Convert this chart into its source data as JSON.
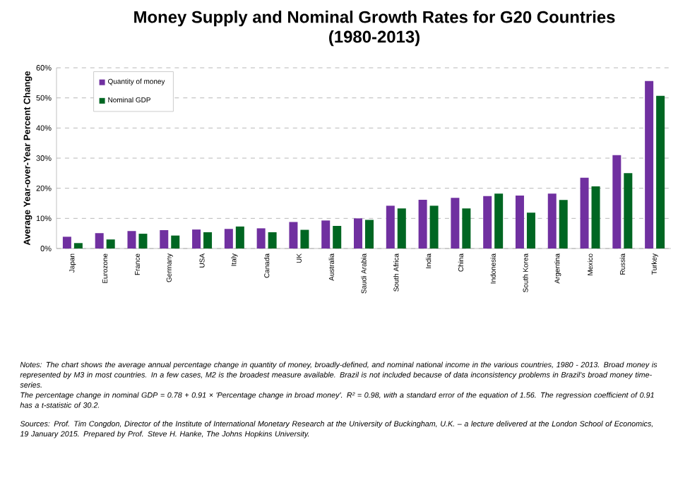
{
  "chart_data": {
    "type": "bar",
    "title": "Money Supply and Nominal Growth Rates for G20 Countries",
    "subtitle": "(1980-2013)",
    "ylabel": "Average Year-over-Year Percent Change",
    "categories": [
      "Japan",
      "Eurozone",
      "France",
      "Germany",
      "USA",
      "Italy",
      "Canada",
      "UK",
      "Australia",
      "Saudi Arabia",
      "South Africa",
      "India",
      "China",
      "Indonesia",
      "South Korea",
      "Argentina",
      "Mexico",
      "Russia",
      "Turkey"
    ],
    "series": [
      {
        "name": "Quantity of money",
        "color": "#7030a0",
        "values": [
          3.9,
          5.1,
          5.8,
          6.1,
          6.3,
          6.5,
          6.7,
          8.8,
          9.3,
          10.0,
          14.2,
          16.2,
          16.8,
          17.4,
          17.6,
          18.2,
          23.5,
          31.0,
          55.6
        ]
      },
      {
        "name": "Nominal GDP",
        "color": "#006622",
        "values": [
          1.8,
          3.0,
          4.9,
          4.3,
          5.4,
          7.3,
          5.4,
          6.2,
          7.5,
          9.5,
          13.3,
          14.2,
          13.3,
          18.2,
          11.9,
          16.1,
          20.6,
          25.0,
          50.7
        ]
      }
    ],
    "ylim": [
      0,
      60
    ],
    "yticks": [
      {
        "value": 0,
        "label": "0%"
      },
      {
        "value": 10,
        "label": "10%"
      },
      {
        "value": 20,
        "label": "20%"
      },
      {
        "value": 30,
        "label": "30%"
      },
      {
        "value": 40,
        "label": "40%"
      },
      {
        "value": 50,
        "label": "50%"
      },
      {
        "value": 60,
        "label": "60%"
      }
    ],
    "grid": "y",
    "legend": "top left",
    "annotations": [
      "Notes: The chart shows the average annual percentage change in quantity of money, broadly-defined, and nominal national income in the various countries, 1980 - 2013. Broad money is represented by M3 in most countries. In a few cases, M2 is the broadest measure available. Brazil is not included because of data inconsistency problems in Brazil's broad money time-series.",
      "The percentage change in nominal GDP = 0.78 + 0.91 × 'Percentage change in broad money'. R² = 0.98, with a standard error of the equation of 1.56. The regression coefficient of 0.91 has a t-statistic of 30.2.",
      "Sources: Prof. Tim Congdon, Director of the Institute of International Monetary Research at the University of Buckingham, U.K. – a lecture delivered at the London School of Economics, 19 January 2015. Prepared by Prof. Steve H. Hanke, The Johns Hopkins University."
    ]
  }
}
